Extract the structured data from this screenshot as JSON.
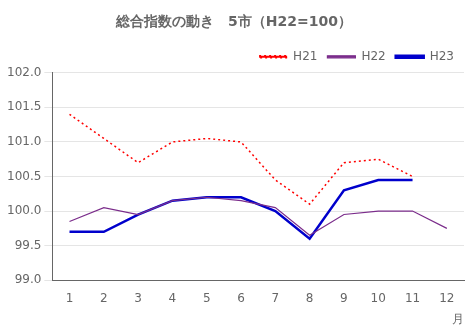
{
  "chart_data": {
    "type": "line",
    "title": "総合指数の動き　5市（H22=100）",
    "x": [
      1,
      2,
      3,
      4,
      5,
      6,
      7,
      8,
      9,
      10,
      11,
      12
    ],
    "series": [
      {
        "name": "H21",
        "color": "#ff0000",
        "line_style": "dotted",
        "values": [
          101.4,
          101.05,
          100.7,
          101.0,
          101.05,
          101.0,
          100.45,
          100.1,
          100.7,
          100.75,
          100.5,
          null
        ]
      },
      {
        "name": "H22",
        "color": "#7b2d8b",
        "line_style": "solid",
        "values": [
          99.85,
          100.05,
          99.95,
          100.15,
          100.2,
          100.15,
          100.05,
          99.65,
          99.95,
          100.0,
          100.0,
          99.75
        ]
      },
      {
        "name": "H23",
        "color": "#0000cc",
        "line_style": "solid",
        "values": [
          99.7,
          99.7,
          99.95,
          100.15,
          100.2,
          100.2,
          100.0,
          99.6,
          100.3,
          100.45,
          100.45,
          null
        ]
      }
    ],
    "xlim": [
      0.5,
      12.5
    ],
    "xticks": [
      1,
      2,
      3,
      4,
      5,
      6,
      7,
      8,
      9,
      10,
      11,
      12
    ],
    "xlabel": "月",
    "ylim": [
      99.0,
      102.0
    ],
    "yticks": [
      {
        "value": 99.0,
        "label": "99.0"
      },
      99.5,
      {
        "value": 100.0,
        "label": "100.0"
      },
      100.5,
      {
        "value": 101.0,
        "label": "101.0"
      },
      101.5,
      {
        "value": 102.0,
        "label": "102.0"
      }
    ],
    "grid": "y",
    "legend": "upper right"
  }
}
